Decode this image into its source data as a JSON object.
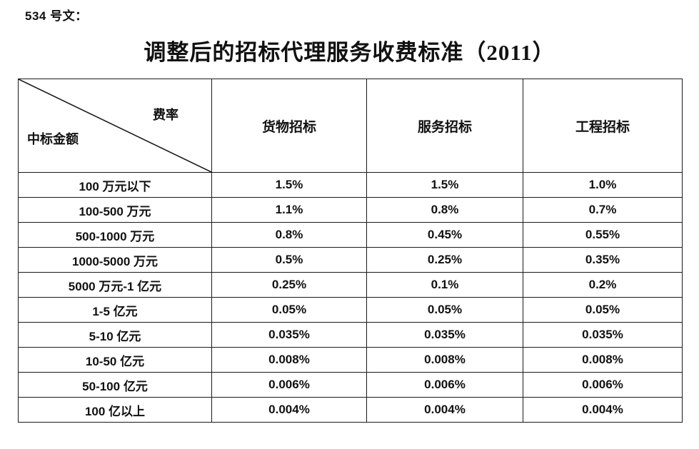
{
  "doc_label": "534 号文：",
  "title": "调整后的招标代理服务收费标准（2011）",
  "table": {
    "corner": {
      "top_right": "费率",
      "bottom_left": "中标金额"
    },
    "columns": [
      "货物招标",
      "服务招标",
      "工程招标"
    ],
    "rows": [
      {
        "label": "100 万元以下",
        "values": [
          "1.5%",
          "1.5%",
          "1.0%"
        ]
      },
      {
        "label": "100-500 万元",
        "values": [
          "1.1%",
          "0.8%",
          "0.7%"
        ]
      },
      {
        "label": "500-1000 万元",
        "values": [
          "0.8%",
          "0.45%",
          "0.55%"
        ]
      },
      {
        "label": "1000-5000 万元",
        "values": [
          "0.5%",
          "0.25%",
          "0.35%"
        ]
      },
      {
        "label": "5000 万元-1 亿元",
        "values": [
          "0.25%",
          "0.1%",
          "0.2%"
        ]
      },
      {
        "label": "1-5 亿元",
        "values": [
          "0.05%",
          "0.05%",
          "0.05%"
        ]
      },
      {
        "label": "5-10 亿元",
        "values": [
          "0.035%",
          "0.035%",
          "0.035%"
        ]
      },
      {
        "label": "10-50 亿元",
        "values": [
          "0.008%",
          "0.008%",
          "0.008%"
        ]
      },
      {
        "label": "50-100 亿元",
        "values": [
          "0.006%",
          "0.006%",
          "0.006%"
        ]
      },
      {
        "label": "100 亿以上",
        "values": [
          "0.004%",
          "0.004%",
          "0.004%"
        ]
      }
    ]
  },
  "colors": {
    "background": "#ffffff",
    "text": "#111111",
    "border": "#1a1a1a"
  },
  "chart_data": {
    "type": "table",
    "title": "调整后的招标代理服务收费标准（2011）",
    "row_axis_label": "中标金额",
    "column_axis_label": "费率",
    "columns": [
      "货物招标",
      "服务招标",
      "工程招标"
    ],
    "rows": [
      "100 万元以下",
      "100-500 万元",
      "500-1000 万元",
      "1000-5000 万元",
      "5000 万元-1 亿元",
      "1-5 亿元",
      "5-10 亿元",
      "10-50 亿元",
      "50-100 亿元",
      "100 亿以上"
    ],
    "values_percent": [
      [
        1.5,
        1.5,
        1.0
      ],
      [
        1.1,
        0.8,
        0.7
      ],
      [
        0.8,
        0.45,
        0.55
      ],
      [
        0.5,
        0.25,
        0.35
      ],
      [
        0.25,
        0.1,
        0.2
      ],
      [
        0.05,
        0.05,
        0.05
      ],
      [
        0.035,
        0.035,
        0.035
      ],
      [
        0.008,
        0.008,
        0.008
      ],
      [
        0.006,
        0.006,
        0.006
      ],
      [
        0.004,
        0.004,
        0.004
      ]
    ]
  }
}
